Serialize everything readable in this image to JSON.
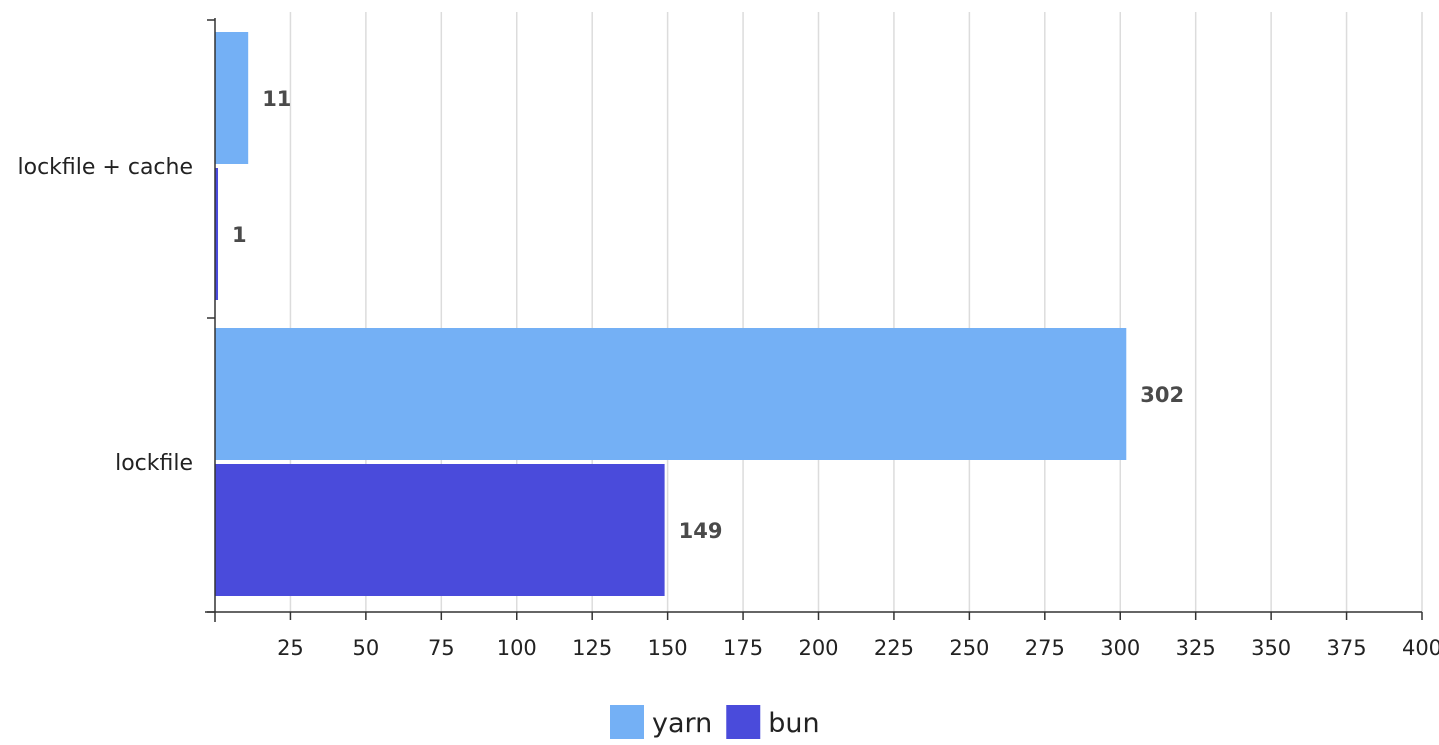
{
  "chart_data": {
    "type": "bar",
    "orientation": "horizontal",
    "categories": [
      "lockfile + cache",
      "lockfile"
    ],
    "series": [
      {
        "name": "yarn",
        "values": [
          11,
          302
        ],
        "color": "#74b0f5"
      },
      {
        "name": "bun",
        "values": [
          1,
          149
        ],
        "color": "#4a4bdb"
      }
    ],
    "xlim": [
      0,
      400
    ],
    "x_ticks": [
      25,
      50,
      75,
      100,
      125,
      150,
      175,
      200,
      225,
      250,
      275,
      300,
      325,
      350,
      375,
      400
    ],
    "grid": true,
    "data_labels": true,
    "legend_position": "bottom-center",
    "title": "",
    "xlabel": "",
    "ylabel": ""
  }
}
